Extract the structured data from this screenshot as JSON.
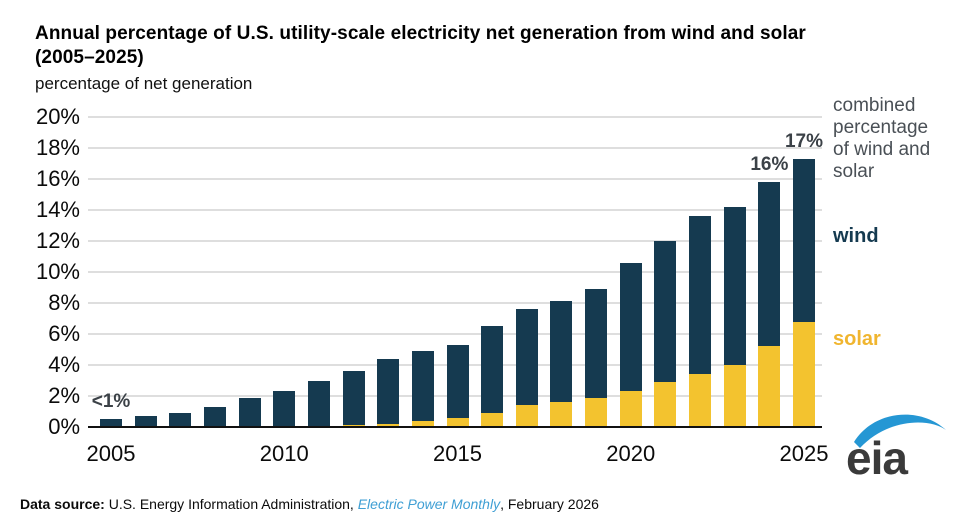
{
  "title": {
    "lines": [
      "Annual percentage of U.S. utility-scale electricity net generation from wind and solar",
      "(2005–2025)"
    ],
    "subtitle": "percentage of net generation"
  },
  "chart_data": {
    "type": "bar",
    "stacked": true,
    "title": "Annual percentage of U.S. utility-scale electricity net generation from wind and solar (2005–2025)",
    "ylabel": "percentage of net generation",
    "xlabel": "",
    "ylim": [
      0,
      20
    ],
    "ytick_step": 2,
    "ytick_suffix": "%",
    "grid": "horizontal",
    "legend_position": "right",
    "categories": [
      "2005",
      "2006",
      "2007",
      "2008",
      "2009",
      "2010",
      "2011",
      "2012",
      "2013",
      "2014",
      "2015",
      "2016",
      "2017",
      "2018",
      "2019",
      "2020",
      "2021",
      "2022",
      "2023",
      "2024",
      "2025"
    ],
    "xticks": [
      "2005",
      "2010",
      "2015",
      "2020",
      "2025"
    ],
    "series": [
      {
        "name": "solar",
        "color": "#f3c32f",
        "values": [
          0.0,
          0.0,
          0.0,
          0.0,
          0.0,
          0.0,
          0.0,
          0.1,
          0.2,
          0.4,
          0.6,
          0.9,
          1.4,
          1.6,
          1.9,
          2.3,
          2.9,
          3.4,
          4.0,
          5.2,
          6.8
        ]
      },
      {
        "name": "wind",
        "color": "#153a50",
        "values": [
          0.5,
          0.7,
          0.9,
          1.3,
          1.9,
          2.3,
          3.0,
          3.5,
          4.2,
          4.5,
          4.7,
          5.6,
          6.2,
          6.5,
          7.0,
          8.3,
          9.1,
          10.2,
          10.2,
          10.6,
          10.5
        ]
      }
    ],
    "annotations": [
      {
        "category": "2005",
        "text": "<1%"
      },
      {
        "category": "2024",
        "text": "16%"
      },
      {
        "category": "2025",
        "text": "17%"
      }
    ]
  },
  "legend": {
    "combined_lines": [
      "combined",
      "percentage",
      "of wind and",
      "solar"
    ],
    "wind_label": "wind",
    "solar_label": "solar",
    "wind_color": "#153a50",
    "solar_color": "#f0b52f",
    "combined_color": "#4a5056"
  },
  "footer": {
    "source_label": "Data source:",
    "source_text": " U.S. Energy Information Administration, ",
    "publication": "Electric Power Monthly",
    "date_text": ", February 2026"
  },
  "logo": {
    "text": "eia",
    "swoosh_color": "#2597d4",
    "text_color": "#3a3a3a"
  }
}
